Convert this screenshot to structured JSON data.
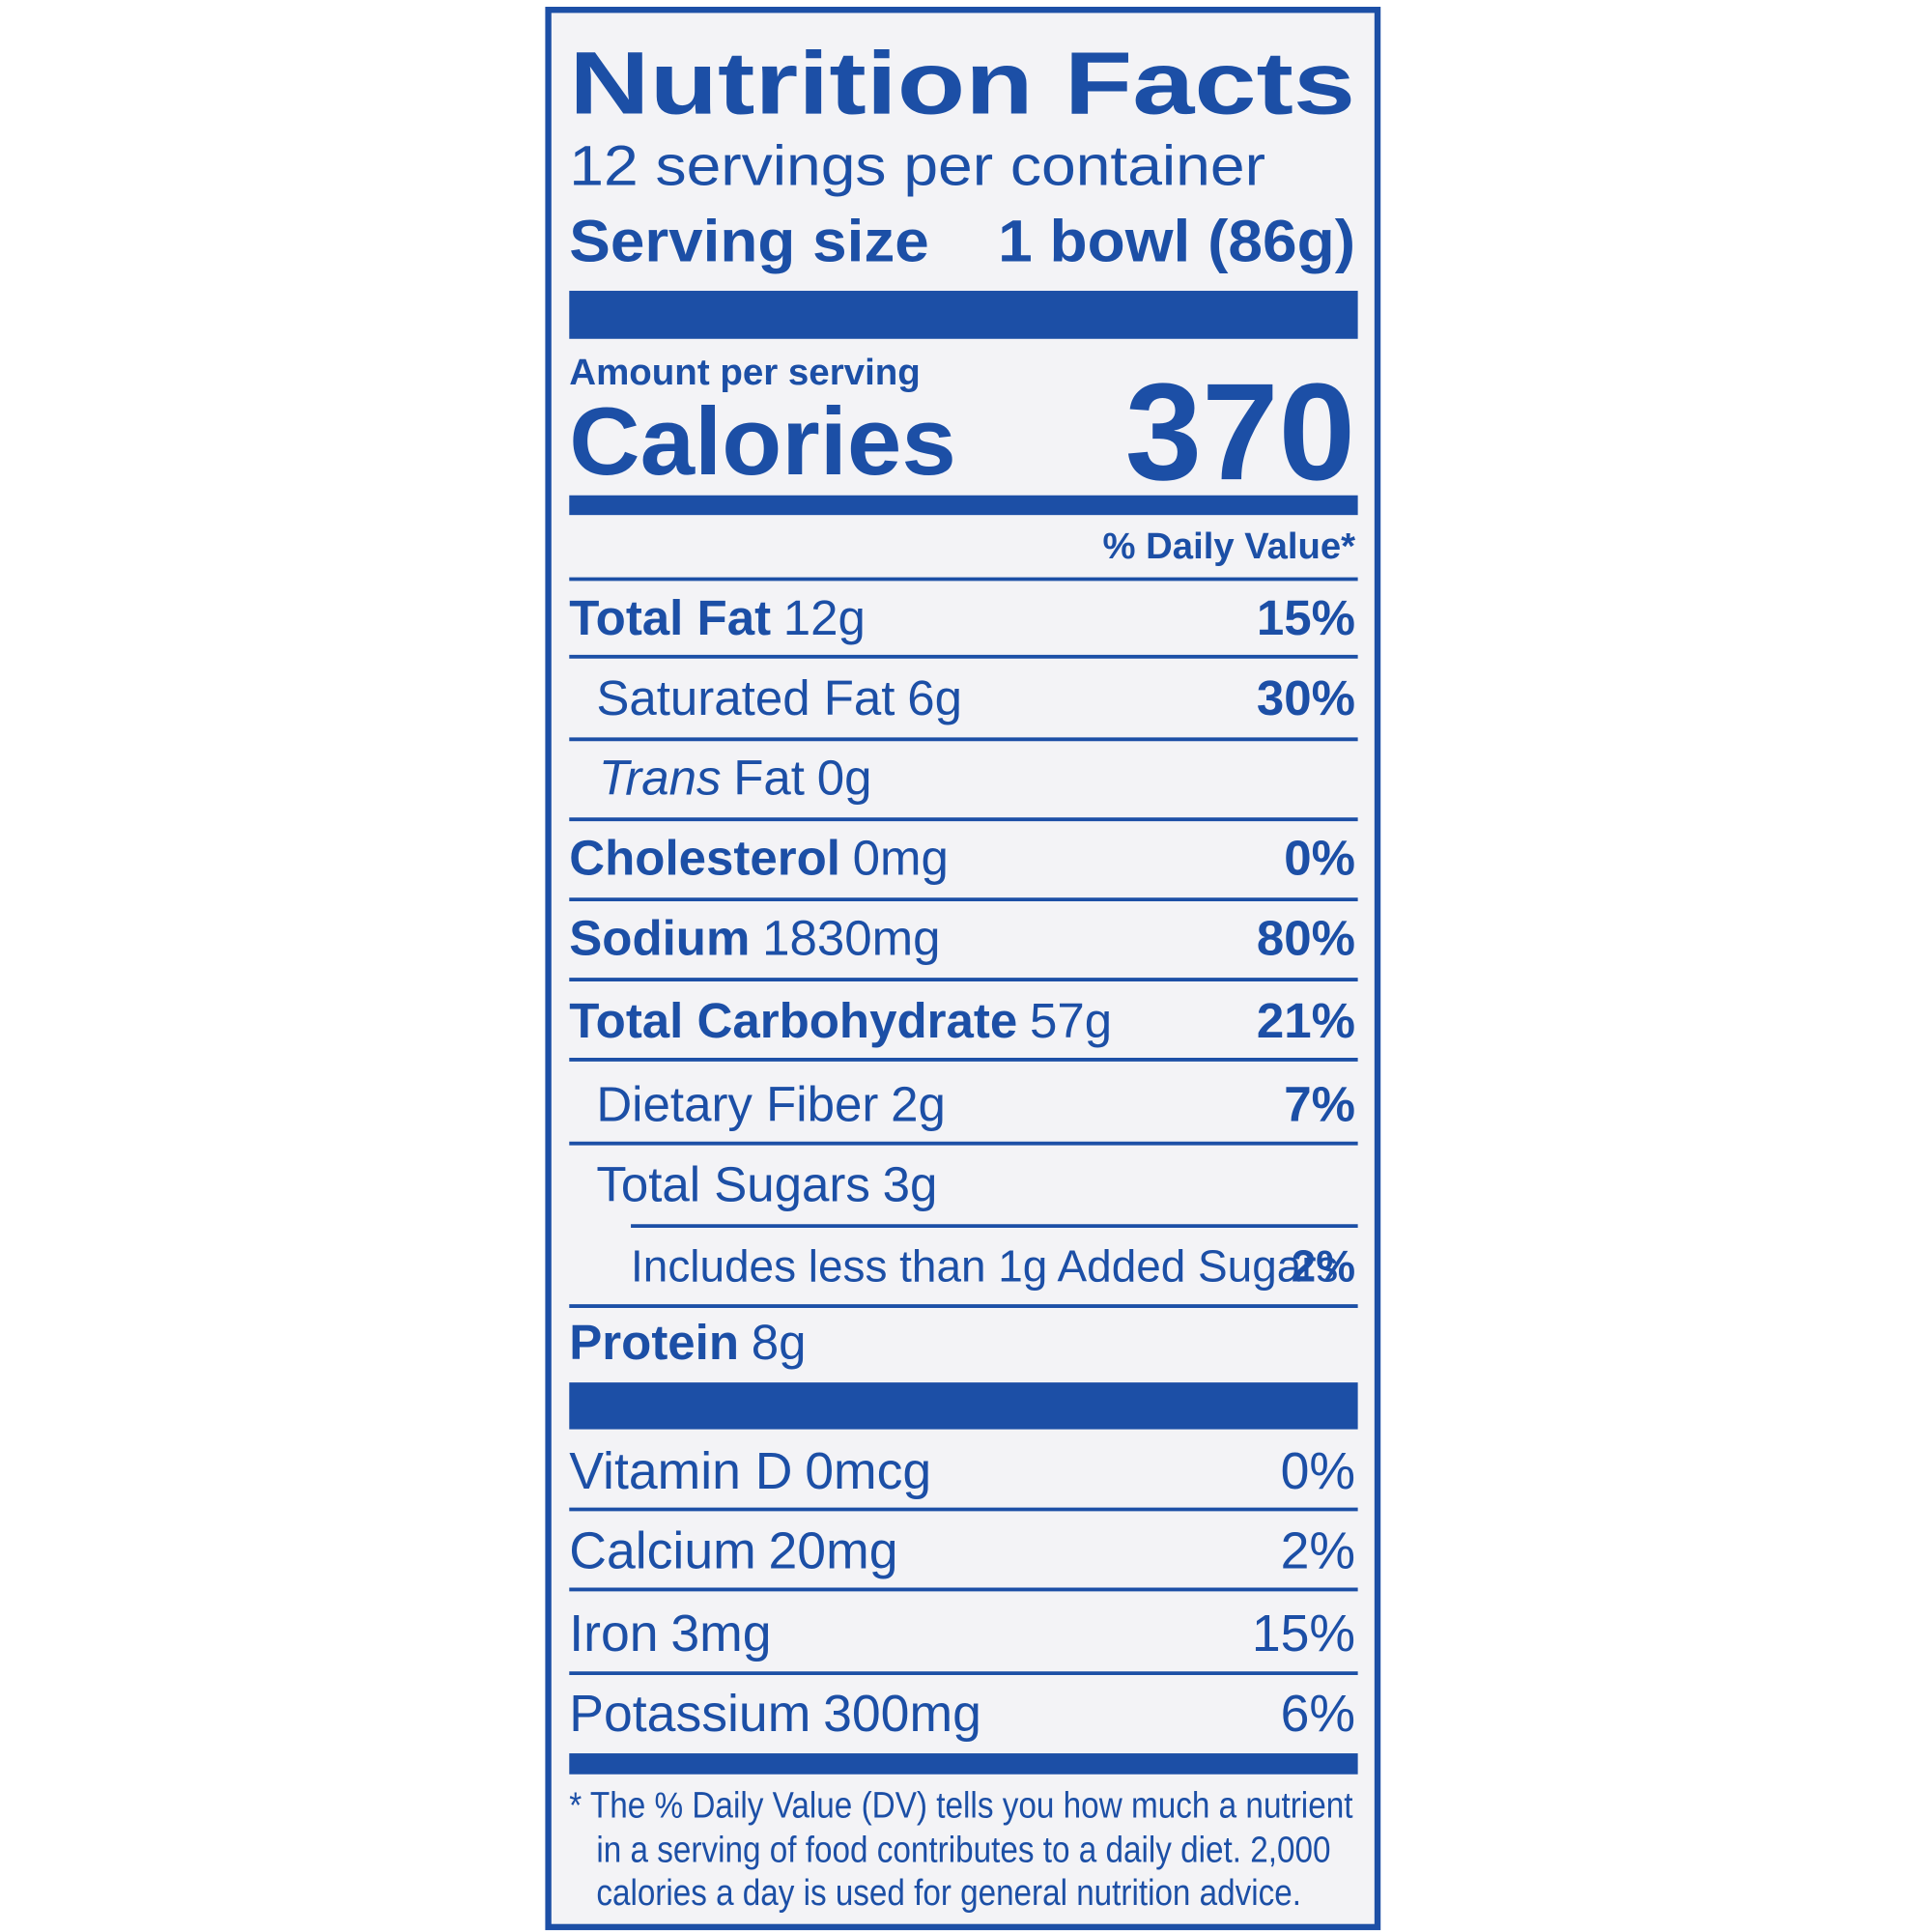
{
  "header": {
    "title": "Nutrition Facts",
    "servings": "12 servings per container",
    "serving_size_label": "Serving size",
    "serving_size_value": "1 bowl (86g)"
  },
  "calories": {
    "amount_label": "Amount per serving",
    "label": "Calories",
    "value": "370"
  },
  "daily_value_header": "% Daily Value*",
  "nutrients": [
    {
      "name": "Total Fat",
      "amount": "12g",
      "dv": "15%"
    },
    {
      "name": "Saturated Fat",
      "amount": "6g",
      "dv": "30%"
    },
    {
      "name_italic": "Trans",
      "name": "Fat",
      "amount": "0g"
    },
    {
      "name": "Cholesterol",
      "amount": "0mg",
      "dv": "0%"
    },
    {
      "name": "Sodium",
      "amount": "1830mg",
      "dv": "80%"
    },
    {
      "name": "Total Carbohydrate",
      "amount": "57g",
      "dv": "21%"
    },
    {
      "name": "Dietary Fiber",
      "amount": "2g",
      "dv": "7%"
    },
    {
      "name": "Total Sugars",
      "amount": "3g"
    },
    {
      "name": "Includes less than 1g Added Sugars",
      "dv": "2%"
    },
    {
      "name": "Protein",
      "amount": "8g"
    }
  ],
  "vitamins": [
    {
      "name": "Vitamin D",
      "amount": "0mcg",
      "dv": "0%"
    },
    {
      "name": "Calcium",
      "amount": "20mg",
      "dv": "2%"
    },
    {
      "name": "Iron",
      "amount": "3mg",
      "dv": "15%"
    },
    {
      "name": "Potassium",
      "amount": "300mg",
      "dv": "6%"
    }
  ],
  "footnote": [
    "* The % Daily Value (DV) tells you how much a nutrient",
    "in a serving of food contributes to a daily diet. 2,000",
    "calories a day is used for general nutrition advice."
  ]
}
